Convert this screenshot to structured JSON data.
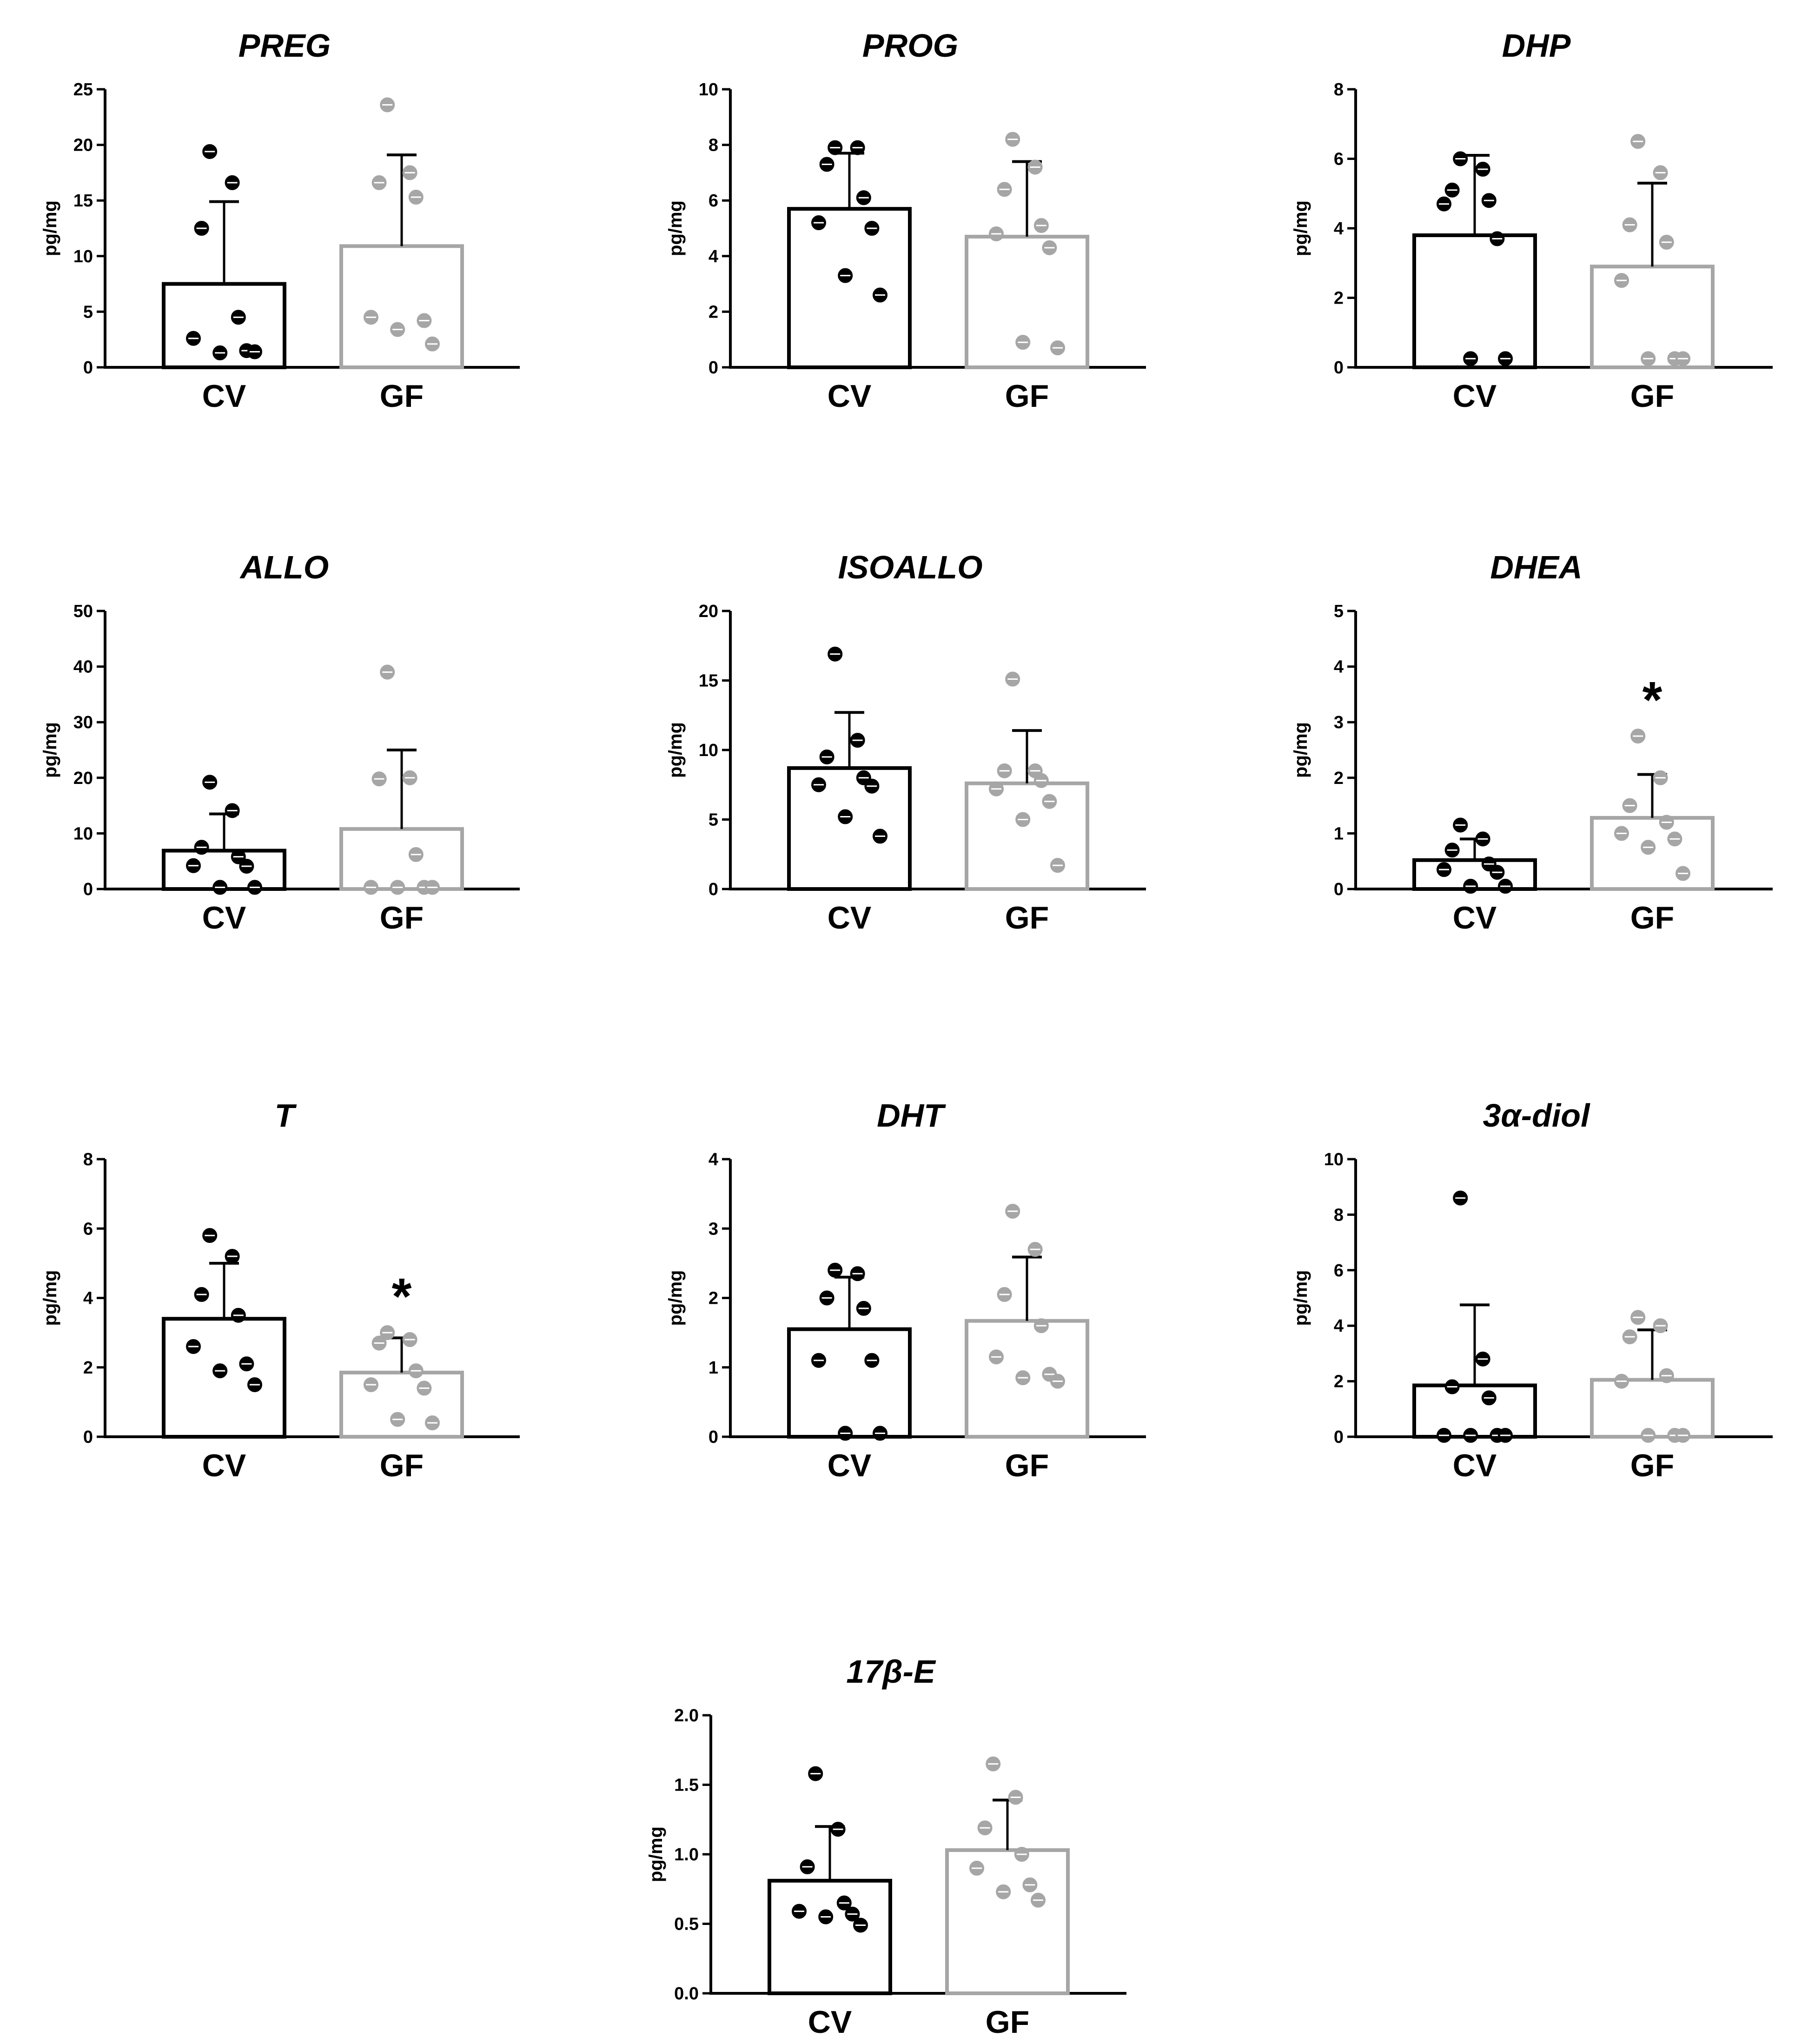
{
  "figure": {
    "colors": {
      "cv": "#000000",
      "gf": "#a6a6a6",
      "dot_center": "#ffffff"
    }
  },
  "chart_data": [
    {
      "type": "bar",
      "title": "PREG",
      "ylabel": "pg/mg",
      "ylim": [
        0,
        25
      ],
      "yticks": [
        0,
        5,
        10,
        15,
        20,
        25
      ],
      "ytick_labels": [
        "0",
        "5",
        "10",
        "15",
        "20",
        "25"
      ],
      "categories": [
        "CV",
        "GF"
      ],
      "series": [
        {
          "name": "CV",
          "mean": 7.5,
          "error": 7.4,
          "points": [
            19.4,
            16.6,
            12.5,
            4.5,
            2.6,
            1.5,
            1.3,
            1.4
          ]
        },
        {
          "name": "GF",
          "mean": 10.9,
          "error": 8.2,
          "points": [
            23.6,
            17.5,
            16.6,
            15.3,
            4.5,
            4.2,
            3.4,
            2.1
          ]
        }
      ],
      "significance": [
        "",
        ""
      ]
    },
    {
      "type": "bar",
      "title": "PROG",
      "ylabel": "pg/mg",
      "ylim": [
        0,
        10
      ],
      "yticks": [
        0,
        2,
        4,
        6,
        8,
        10
      ],
      "ytick_labels": [
        "0",
        "2",
        "4",
        "6",
        "8",
        "10"
      ],
      "categories": [
        "CV",
        "GF"
      ],
      "series": [
        {
          "name": "CV",
          "mean": 5.7,
          "error": 2.0,
          "points": [
            7.9,
            7.9,
            7.3,
            6.1,
            5.2,
            5.0,
            3.3,
            2.6
          ]
        },
        {
          "name": "GF",
          "mean": 4.7,
          "error": 2.7,
          "points": [
            8.2,
            7.2,
            6.4,
            5.1,
            4.8,
            4.3,
            0.9,
            0.7
          ]
        }
      ],
      "significance": [
        "",
        ""
      ]
    },
    {
      "type": "bar",
      "title": "DHP",
      "ylabel": "pg/mg",
      "ylim": [
        0,
        8
      ],
      "yticks": [
        0,
        2,
        4,
        6,
        8
      ],
      "ytick_labels": [
        "0",
        "2",
        "4",
        "6",
        "8"
      ],
      "categories": [
        "CV",
        "GF"
      ],
      "series": [
        {
          "name": "CV",
          "mean": 3.8,
          "error": 2.3,
          "points": [
            6.0,
            5.7,
            5.1,
            4.8,
            4.7,
            3.7,
            0.25,
            0.25
          ]
        },
        {
          "name": "GF",
          "mean": 2.9,
          "error": 2.4,
          "points": [
            6.5,
            5.6,
            4.1,
            3.6,
            2.5,
            0.25,
            0.25,
            0.25
          ]
        }
      ],
      "significance": [
        "",
        ""
      ]
    },
    {
      "type": "bar",
      "title": "ALLO",
      "ylabel": "pg/mg",
      "ylim": [
        0,
        50
      ],
      "yticks": [
        0,
        10,
        20,
        30,
        40,
        50
      ],
      "ytick_labels": [
        "0",
        "10",
        "20",
        "30",
        "40",
        "50"
      ],
      "categories": [
        "CV",
        "GF"
      ],
      "series": [
        {
          "name": "CV",
          "mean": 6.9,
          "error": 6.6,
          "points": [
            19.2,
            14.1,
            7.5,
            5.8,
            4.2,
            4.1,
            0.3,
            0.3
          ]
        },
        {
          "name": "GF",
          "mean": 10.8,
          "error": 14.2,
          "points": [
            39.0,
            20.0,
            19.8,
            6.2,
            0.3,
            0.3,
            0.3,
            0.3
          ]
        }
      ],
      "significance": [
        "",
        ""
      ]
    },
    {
      "type": "bar",
      "title": "ISOALLO",
      "ylabel": "pg/mg",
      "ylim": [
        0,
        20
      ],
      "yticks": [
        0,
        5,
        10,
        15,
        20
      ],
      "ytick_labels": [
        "0",
        "5",
        "10",
        "15",
        "20"
      ],
      "categories": [
        "CV",
        "GF"
      ],
      "series": [
        {
          "name": "CV",
          "mean": 8.7,
          "error": 4.0,
          "points": [
            16.9,
            10.7,
            9.5,
            8.0,
            7.5,
            7.4,
            5.2,
            3.8
          ]
        },
        {
          "name": "GF",
          "mean": 7.6,
          "error": 3.8,
          "points": [
            15.1,
            8.5,
            8.5,
            7.8,
            7.2,
            6.3,
            5.0,
            1.7
          ]
        }
      ],
      "significance": [
        "",
        ""
      ]
    },
    {
      "type": "bar",
      "title": "DHEA",
      "ylabel": "pg/mg",
      "ylim": [
        0,
        5
      ],
      "yticks": [
        0,
        1,
        2,
        3,
        4,
        5
      ],
      "ytick_labels": [
        "0",
        "1",
        "2",
        "3",
        "4",
        "5"
      ],
      "categories": [
        "CV",
        "GF"
      ],
      "series": [
        {
          "name": "CV",
          "mean": 0.52,
          "error": 0.38,
          "points": [
            1.15,
            0.9,
            0.7,
            0.45,
            0.35,
            0.3,
            0.05,
            0.05
          ]
        },
        {
          "name": "GF",
          "mean": 1.28,
          "error": 0.78,
          "points": [
            2.75,
            2.0,
            1.5,
            1.2,
            1.0,
            0.9,
            0.75,
            0.28
          ]
        }
      ],
      "significance": [
        "",
        "*"
      ]
    },
    {
      "type": "bar",
      "title": "T",
      "ylabel": "pg/mg",
      "ylim": [
        0,
        8
      ],
      "yticks": [
        0,
        2,
        4,
        6,
        8
      ],
      "ytick_labels": [
        "0",
        "2",
        "4",
        "6",
        "8"
      ],
      "categories": [
        "CV",
        "GF"
      ],
      "series": [
        {
          "name": "CV",
          "mean": 3.4,
          "error": 1.6,
          "points": [
            5.8,
            5.2,
            4.1,
            3.5,
            2.6,
            2.1,
            1.9,
            1.5
          ]
        },
        {
          "name": "GF",
          "mean": 1.85,
          "error": 1.0,
          "points": [
            3.0,
            2.8,
            2.7,
            1.9,
            1.5,
            1.4,
            0.5,
            0.4
          ]
        }
      ],
      "significance": [
        "",
        "*"
      ]
    },
    {
      "type": "bar",
      "title": "DHT",
      "ylabel": "pg/mg",
      "ylim": [
        0,
        4
      ],
      "yticks": [
        0,
        1,
        2,
        3,
        4
      ],
      "ytick_labels": [
        "0",
        "1",
        "2",
        "3",
        "4"
      ],
      "categories": [
        "CV",
        "GF"
      ],
      "series": [
        {
          "name": "CV",
          "mean": 1.55,
          "error": 0.75,
          "points": [
            2.4,
            2.35,
            2.0,
            1.85,
            1.1,
            1.1,
            0.05,
            0.05
          ]
        },
        {
          "name": "GF",
          "mean": 1.67,
          "error": 0.92,
          "points": [
            3.25,
            2.7,
            2.05,
            1.6,
            1.15,
            0.9,
            0.85,
            0.8
          ]
        }
      ],
      "significance": [
        "",
        ""
      ]
    },
    {
      "type": "bar",
      "title": "3α-diol",
      "ylabel": "pg/mg",
      "ylim": [
        0,
        10
      ],
      "yticks": [
        0,
        2,
        4,
        6,
        8,
        10
      ],
      "ytick_labels": [
        "0",
        "2",
        "4",
        "6",
        "8",
        "10"
      ],
      "categories": [
        "CV",
        "GF"
      ],
      "series": [
        {
          "name": "CV",
          "mean": 1.85,
          "error": 2.9,
          "points": [
            8.6,
            2.8,
            1.8,
            1.4,
            0.05,
            0.05,
            0.05,
            0.05
          ]
        },
        {
          "name": "GF",
          "mean": 2.05,
          "error": 1.8,
          "points": [
            4.3,
            4.0,
            3.6,
            2.2,
            2.0,
            0.05,
            0.05,
            0.05
          ]
        }
      ],
      "significance": [
        "",
        ""
      ]
    },
    {
      "type": "bar",
      "title": "17β-E",
      "ylabel": "pg/mg",
      "ylim": [
        0,
        2.0
      ],
      "yticks": [
        0,
        0.5,
        1.0,
        1.5,
        2.0
      ],
      "ytick_labels": [
        "0.0",
        "0.5",
        "1.0",
        "1.5",
        "2.0"
      ],
      "categories": [
        "CV",
        "GF"
      ],
      "series": [
        {
          "name": "CV",
          "mean": 0.81,
          "error": 0.39,
          "points": [
            1.58,
            1.18,
            0.91,
            0.65,
            0.59,
            0.57,
            0.55,
            0.49
          ]
        },
        {
          "name": "GF",
          "mean": 1.03,
          "error": 0.36,
          "points": [
            1.65,
            1.41,
            1.19,
            1.0,
            0.9,
            0.78,
            0.73,
            0.67
          ]
        }
      ],
      "significance": [
        "",
        ""
      ]
    }
  ]
}
